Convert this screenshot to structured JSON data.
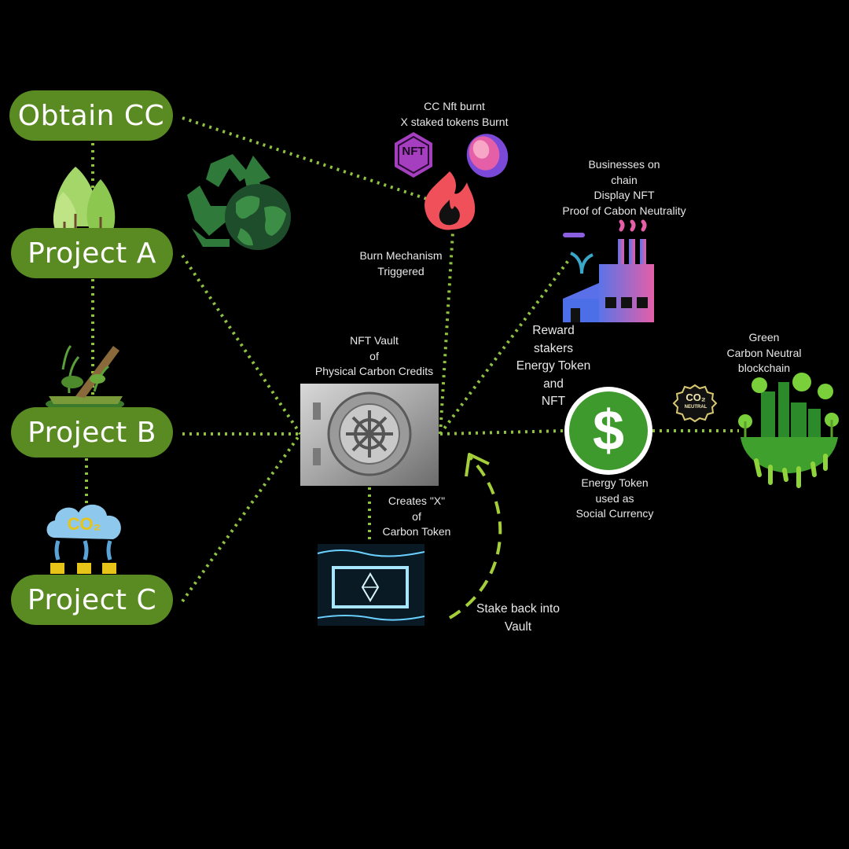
{
  "nodes": {
    "obtain": "Obtain CC",
    "project_a": "Project A",
    "project_b": "Project B",
    "project_c": "Project C"
  },
  "labels": {
    "burnt": [
      "CC Nft burnt",
      "X staked tokens Burnt"
    ],
    "nft_badge": "NFT",
    "burn_mechanism": [
      "Burn Mechanism",
      "Triggered"
    ],
    "businesses": [
      "Businesses on",
      "chain",
      "Display NFT",
      "Proof of Cabon Neutrality"
    ],
    "vault": [
      "NFT Vault",
      "of",
      "Physical Carbon Credits"
    ],
    "reward": [
      "Reward",
      "stakers",
      "Energy Token",
      "and",
      "NFT"
    ],
    "green_chain": [
      "Green",
      "Carbon Neutral",
      "blockchain"
    ],
    "energy_token": [
      "Energy Token",
      "used as",
      "Social Currency"
    ],
    "creates": [
      "Creates \"X\"",
      "of",
      "Carbon Token"
    ],
    "stake_back": [
      "Stake back into",
      "Vault"
    ],
    "co2_cloud": "CO₂",
    "co2_badge": "CO₂",
    "neutral_badge": "NEUTRAL",
    "dollar": "$"
  },
  "colors": {
    "pill": "#5a8a22",
    "connector": "#8fc23f",
    "arrow": "#a4cf3a",
    "background": "#000000"
  },
  "icons": [
    "recycle-globe-icon",
    "nft-icon",
    "token-coin-icon",
    "fire-icon",
    "factory-icon",
    "forest-icon",
    "swamp-icon",
    "co2-cloud-icon",
    "vault-icon",
    "ethereum-token-icon",
    "dollar-coin-icon",
    "co2-neutral-badge-icon",
    "green-city-icon"
  ]
}
